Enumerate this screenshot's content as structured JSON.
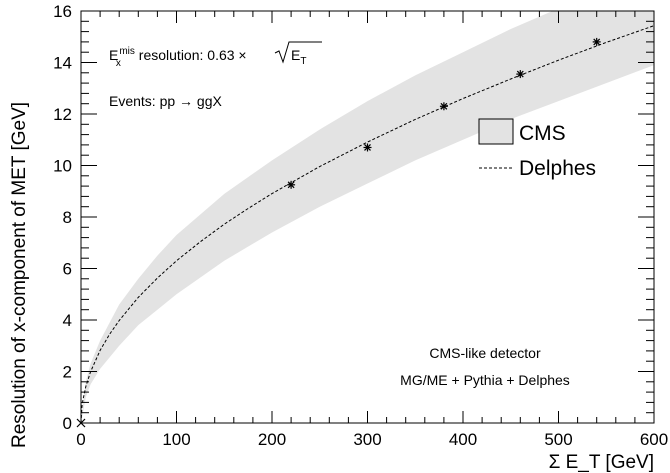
{
  "chart_data": {
    "type": "line",
    "title": "",
    "xlabel": "Σ E_T [GeV]",
    "ylabel": "Resolution of x-component of MET [GeV]",
    "xlim": [
      0,
      600
    ],
    "ylim": [
      0,
      16
    ],
    "x_ticks": [
      0,
      100,
      200,
      300,
      400,
      500,
      600
    ],
    "y_ticks": [
      0,
      2,
      4,
      6,
      8,
      10,
      12,
      14,
      16
    ],
    "grid": false,
    "legend_position": "right",
    "series": [
      {
        "name": "CMS",
        "kind": "band",
        "color": "#e3e3e3",
        "x": [
          0,
          5,
          10,
          20,
          40,
          60,
          80,
          100,
          150,
          200,
          250,
          300,
          350,
          400,
          450,
          500,
          550,
          600
        ],
        "y_low": [
          0.0,
          1.0,
          1.5,
          2.1,
          3.0,
          3.8,
          4.4,
          5.0,
          6.3,
          7.4,
          8.4,
          9.3,
          10.2,
          11.0,
          11.8,
          12.5,
          13.2,
          13.9
        ],
        "y_high": [
          0.0,
          1.6,
          2.3,
          3.2,
          4.6,
          5.6,
          6.5,
          7.3,
          8.9,
          10.2,
          11.4,
          12.5,
          13.5,
          14.4,
          15.3,
          16.1,
          16.6,
          16.6
        ]
      },
      {
        "name": "Delphes",
        "kind": "dashed-line",
        "color": "#000000",
        "x": [
          0,
          1,
          2,
          5,
          10,
          20,
          30,
          40,
          60,
          80,
          100,
          125,
          150,
          175,
          200,
          250,
          300,
          350,
          400,
          450,
          500,
          550,
          600
        ],
        "y": [
          0.0,
          0.63,
          0.89,
          1.41,
          1.99,
          2.82,
          3.45,
          3.98,
          4.88,
          5.63,
          6.3,
          7.04,
          7.72,
          8.33,
          8.91,
          9.96,
          10.91,
          11.79,
          12.6,
          13.36,
          14.09,
          14.78,
          15.43
        ]
      },
      {
        "name": "",
        "kind": "markers",
        "color": "#000000",
        "x": [
          220,
          300,
          380,
          460,
          540
        ],
        "y": [
          9.25,
          10.7,
          12.3,
          13.55,
          14.8
        ]
      }
    ],
    "annotations": {
      "resolution_prefix": "E",
      "resolution_sup": "mis",
      "resolution_sub": "x",
      "resolution_mid": " resolution: 0.63 ×",
      "resolution_rad": "E",
      "resolution_rad_sub": "T",
      "events": "Events: pp → ggX",
      "detector": "CMS-like detector",
      "generator": "MG/ME + Pythia + Delphes"
    }
  }
}
